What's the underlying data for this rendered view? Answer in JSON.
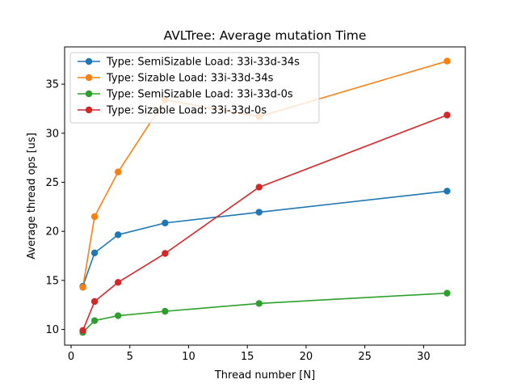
{
  "chart_data": {
    "type": "line",
    "title": "AVLTree: Average mutation Time",
    "xlabel": "Thread number [N]",
    "ylabel": "Average thread ops [us]",
    "xlim": [
      -0.55,
      33.55
    ],
    "ylim": [
      8.4,
      38.8
    ],
    "x_ticks": [
      0,
      5,
      10,
      15,
      20,
      25,
      30
    ],
    "y_ticks": [
      10,
      15,
      20,
      25,
      30,
      35
    ],
    "grid": false,
    "legend_position": "top-left",
    "x": [
      1,
      2,
      4,
      8,
      16,
      32
    ],
    "series": [
      {
        "name": "Type: SemiSizable Load: 33i-33d-34s",
        "color": "#1f77b4",
        "values": [
          14.4,
          17.8,
          19.65,
          20.85,
          21.95,
          24.1
        ]
      },
      {
        "name": "Type: Sizable Load: 33i-33d-34s",
        "color": "#ff7f0e",
        "values": [
          14.3,
          21.5,
          26.05,
          33.4,
          31.7,
          37.35
        ]
      },
      {
        "name": "Type: SemiSizable Load: 33i-33d-0s",
        "color": "#2ca02c",
        "values": [
          9.7,
          10.9,
          11.4,
          11.85,
          12.65,
          13.7
        ]
      },
      {
        "name": "Type: Sizable Load: 33i-33d-0s",
        "color": "#d62728",
        "values": [
          9.9,
          12.85,
          14.8,
          17.75,
          24.5,
          31.85
        ]
      }
    ]
  }
}
